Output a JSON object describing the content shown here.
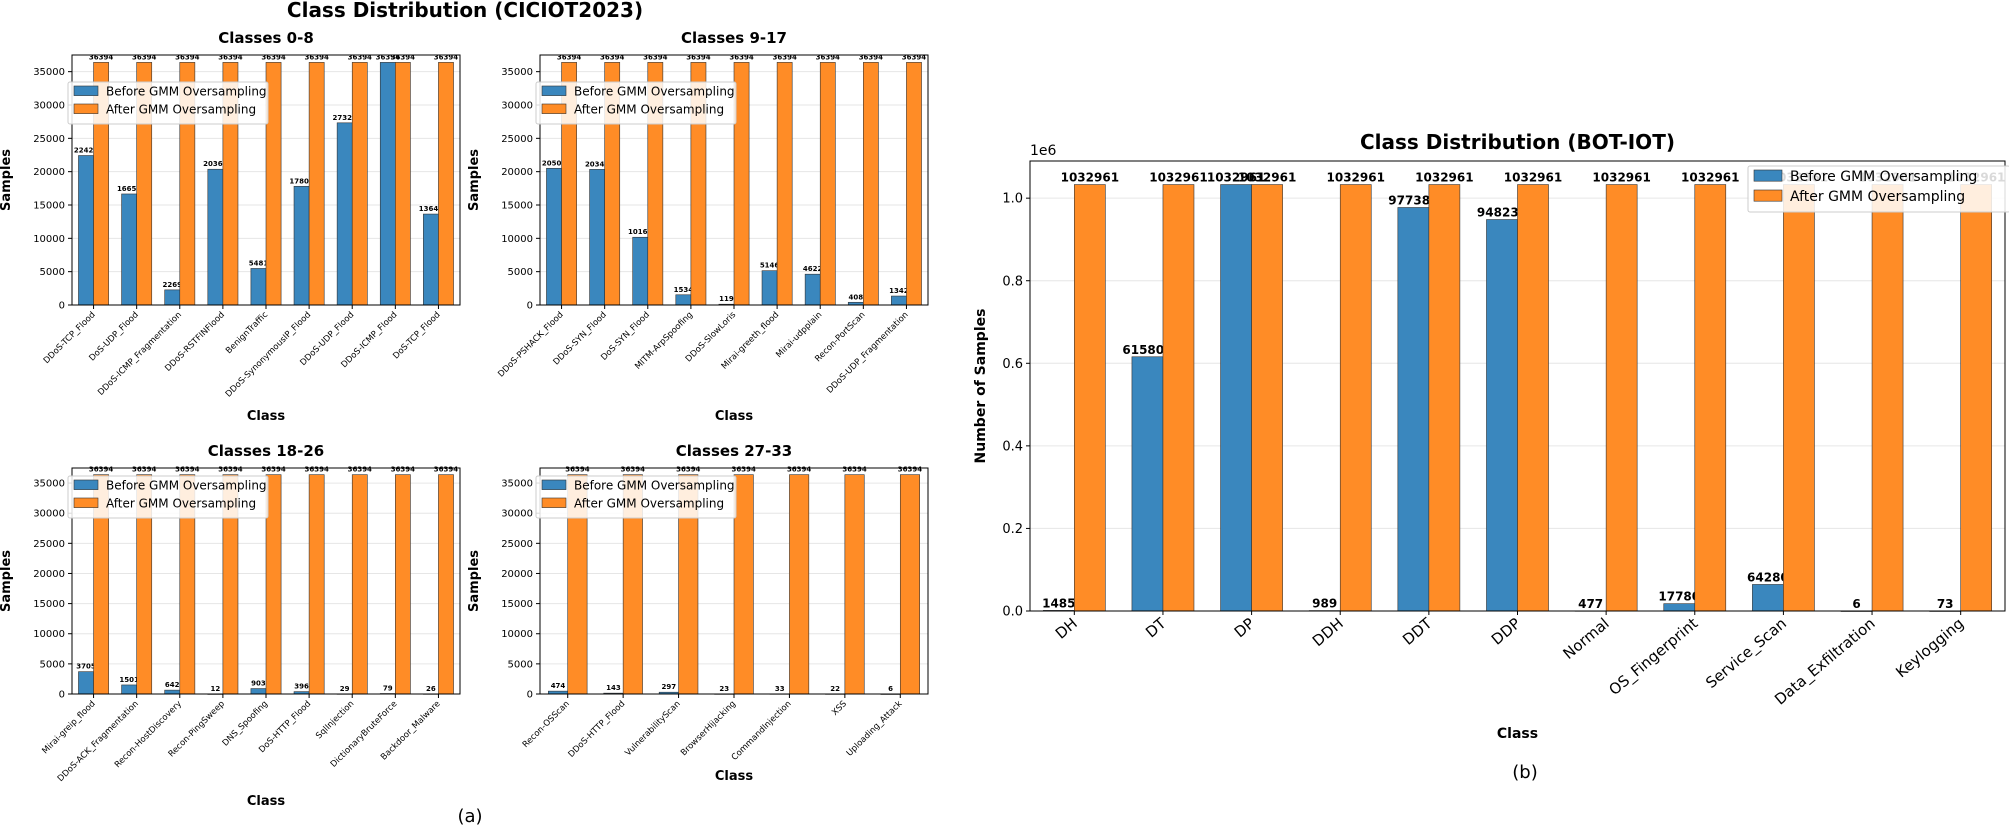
{
  "figure": {
    "left_title": "Class Distribution (CICIOT2023)",
    "caption_a": "(a)",
    "caption_b": "(b)"
  },
  "colors": {
    "before": "#3a87be",
    "after": "#ff8c26",
    "grid": "#e6e6e6"
  },
  "legend": {
    "before": "Before GMM Oversampling",
    "after": "After GMM Oversampling"
  },
  "chart_data": [
    {
      "type": "bar",
      "title": "Classes 0-8",
      "xlabel": "Class",
      "ylabel": "Samples",
      "ylim": [
        0,
        37500
      ],
      "yticks": [
        0,
        5000,
        10000,
        15000,
        20000,
        25000,
        30000,
        35000
      ],
      "categories": [
        "DDoS-TCP_Flood",
        "DoS-UDP_Flood",
        "DDoS-ICMP_Fragmentation",
        "DDoS-RSTFINFlood",
        "BenignTraffic",
        "DDoS-SynonymousIP_Flood",
        "DDoS-UDP_Flood",
        "DDoS-ICMP_Flood",
        "DoS-TCP_Flood"
      ],
      "series": [
        {
          "name": "Before GMM Oversampling",
          "values": [
            22423,
            16654,
            2269,
            20365,
            5481,
            17807,
            27326,
            36394,
            13641
          ]
        },
        {
          "name": "After GMM Oversampling",
          "values": [
            36394,
            36394,
            36394,
            36394,
            36394,
            36394,
            36394,
            36394,
            36394
          ]
        }
      ]
    },
    {
      "type": "bar",
      "title": "Classes 9-17",
      "xlabel": "Class",
      "ylabel": "Samples",
      "ylim": [
        0,
        37500
      ],
      "yticks": [
        0,
        5000,
        10000,
        15000,
        20000,
        25000,
        30000,
        35000
      ],
      "categories": [
        "DDoS-PSHACK_Flood",
        "DDoS-SYN_Flood",
        "DoS-SYN_Flood",
        "MITM-ArpSpoofing",
        "DDoS-SlowLoris",
        "Mirai-greeth_flood",
        "Mirai-udpplain",
        "Recon-PortScan",
        "DDoS-UDP_Fragmentation"
      ],
      "series": [
        {
          "name": "Before GMM Oversampling",
          "values": [
            20508,
            20343,
            10163,
            1534,
            119,
            5146,
            4622,
            408,
            1342
          ]
        },
        {
          "name": "After GMM Oversampling",
          "values": [
            36394,
            36394,
            36394,
            36394,
            36394,
            36394,
            36394,
            36394,
            36394
          ]
        }
      ]
    },
    {
      "type": "bar",
      "title": "Classes 18-26",
      "xlabel": "Class",
      "ylabel": "Samples",
      "ylim": [
        0,
        37500
      ],
      "yticks": [
        0,
        5000,
        10000,
        15000,
        20000,
        25000,
        30000,
        35000
      ],
      "categories": [
        "Mirai-greip_flood",
        "DDoS-ACK_Fragmentation",
        "Recon-HostDiscovery",
        "Recon-PingSweep",
        "DNS_Spoofing",
        "DoS-HTTP_Flood",
        "SqlInjection",
        "DictionaryBruteForce",
        "Backdoor_Malware"
      ],
      "series": [
        {
          "name": "Before GMM Oversampling",
          "values": [
            3705,
            1501,
            642,
            12,
            903,
            396,
            29,
            79,
            26
          ]
        },
        {
          "name": "After GMM Oversampling",
          "values": [
            36394,
            36394,
            36394,
            36394,
            36394,
            36394,
            36394,
            36394,
            36394
          ]
        }
      ]
    },
    {
      "type": "bar",
      "title": "Classes 27-33",
      "xlabel": "Class",
      "ylabel": "Samples",
      "ylim": [
        0,
        37500
      ],
      "yticks": [
        0,
        5000,
        10000,
        15000,
        20000,
        25000,
        30000,
        35000
      ],
      "categories": [
        "Recon-OSScan",
        "DDoS-HTTP_Flood",
        "VulnerabilityScan",
        "BrowserHijacking",
        "CommandInjection",
        "XSS",
        "Uploading_Attack"
      ],
      "series": [
        {
          "name": "Before GMM Oversampling",
          "values": [
            474,
            143,
            297,
            23,
            33,
            22,
            6
          ]
        },
        {
          "name": "After GMM Oversampling",
          "values": [
            36394,
            36394,
            36394,
            36394,
            36394,
            36394,
            36394
          ]
        }
      ]
    },
    {
      "type": "bar",
      "title": "Class Distribution (BOT-IOT)",
      "xlabel": "Class",
      "ylabel": "Number of Samples",
      "offset_label": "1e6",
      "ylim": [
        0,
        1.09
      ],
      "yticks": [
        0.0,
        0.2,
        0.4,
        0.6,
        0.8,
        1.0
      ],
      "categories": [
        "DH",
        "DT",
        "DP",
        "DDH",
        "DDT",
        "DDP",
        "Normal",
        "OS_Fingerprint",
        "Service_Scan",
        "Data_Exfiltration",
        "Keylogging"
      ],
      "series": [
        {
          "name": "Before GMM Oversampling",
          "values": [
            1485,
            615800,
            1032961,
            989,
            977380,
            948239,
            477,
            17780,
            64280,
            6,
            73
          ]
        },
        {
          "name": "After GMM Oversampling",
          "values": [
            1032961,
            1032961,
            1032961,
            1032961,
            1032961,
            1032961,
            1032961,
            1032961,
            1032961,
            1032961,
            1032961
          ]
        }
      ]
    }
  ]
}
